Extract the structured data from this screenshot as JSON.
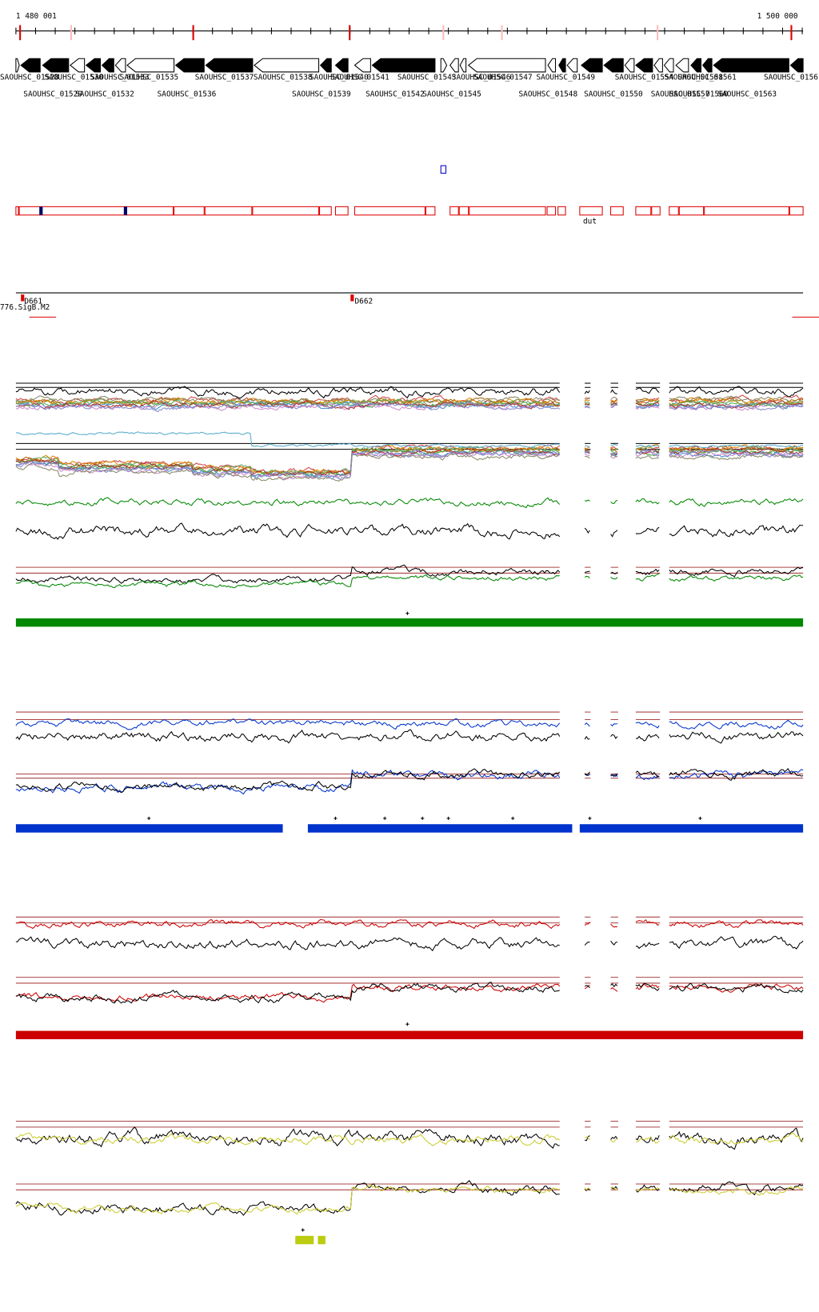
{
  "axis": {
    "start_label": "1 480 001",
    "end_label": "1 500 000"
  },
  "genes": {
    "row1": [
      "SAOUHSC_01528",
      "SAOUHSC_01530",
      "SAOUHSC_01533",
      "SAOUHSC_01535",
      "SAOUHSC_01537",
      "SAOUHSC_01538",
      "SAOUHSC_01540",
      "SAOUHSC_01541",
      "SAOUHSC_01543",
      "SAOUHSC_01546",
      "SAOUHSC_01547",
      "SAOUHSC_01549",
      "SAOUHSC_01554",
      "SAOUHSC_01558",
      "SAOUHSC_01561",
      "SAOUHSC_0156"
    ],
    "row2": [
      "SAOUHSC_01529",
      "SAOUHSC_01532",
      "SAOUHSC_01536",
      "SAOUHSC_01539",
      "SAOUHSC_01542",
      "SAOUHSC_01545",
      "SAOUHSC_01548",
      "SAOUHSC_01550",
      "SAOUHSC_01557",
      "SAOUHSC_01560",
      "SAOUHSC_01563"
    ]
  },
  "features": {
    "operon_label": "dut",
    "promoters": [
      "D661",
      "D662"
    ],
    "site_label": "776.SigB.M2"
  }
}
